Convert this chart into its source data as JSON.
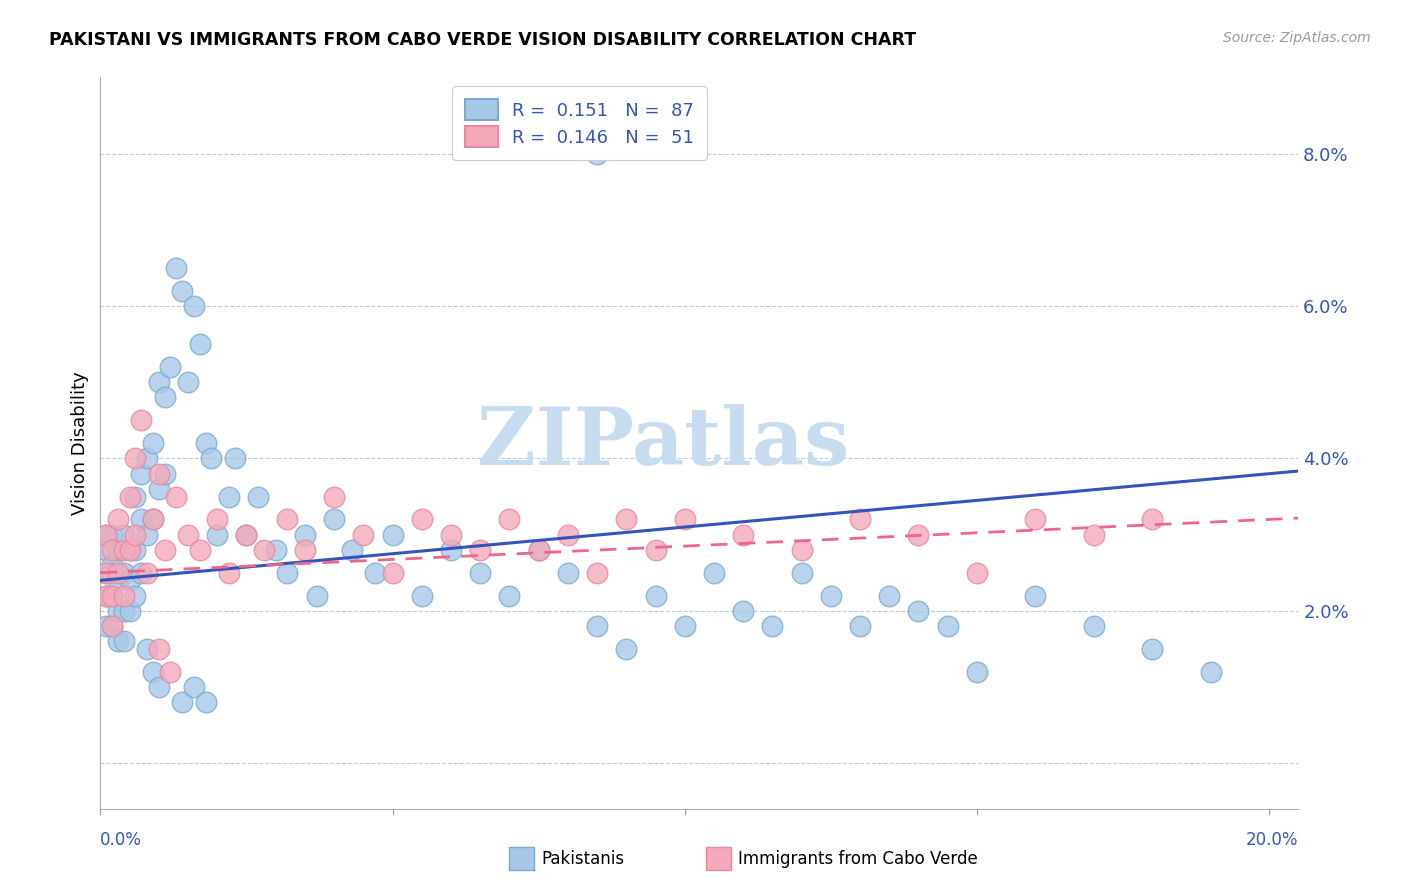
{
  "title": "PAKISTANI VS IMMIGRANTS FROM CABO VERDE VISION DISABILITY CORRELATION CHART",
  "source": "Source: ZipAtlas.com",
  "ylabel": "Vision Disability",
  "blue_color": "#A8C8E8",
  "pink_color": "#F4AABB",
  "line_blue": "#3355BB",
  "line_pink": "#EE6688",
  "watermark_color": "#C8DCF0",
  "pak_n": 87,
  "cv_n": 51,
  "pak_R": 0.151,
  "cv_R": 0.146,
  "xlim": [
    0.0,
    0.205
  ],
  "ylim": [
    -0.006,
    0.09
  ],
  "yticks": [
    0.0,
    0.02,
    0.04,
    0.06,
    0.08
  ],
  "ytick_labels": [
    "",
    "2.0%",
    "4.0%",
    "6.0%",
    "8.0%"
  ],
  "xtick_labels_show": [
    "0.0%",
    "20.0%"
  ],
  "trend_blue_start": 0.024,
  "trend_blue_end": 0.038,
  "trend_pink_start": 0.025,
  "trend_pink_end": 0.032,
  "pak_seed": 12,
  "cv_seed": 7,
  "pak_x": [
    0.001,
    0.001,
    0.001,
    0.001,
    0.001,
    0.002,
    0.002,
    0.002,
    0.002,
    0.002,
    0.003,
    0.003,
    0.003,
    0.003,
    0.004,
    0.004,
    0.004,
    0.004,
    0.005,
    0.005,
    0.005,
    0.006,
    0.006,
    0.006,
    0.007,
    0.007,
    0.007,
    0.008,
    0.008,
    0.009,
    0.009,
    0.01,
    0.01,
    0.011,
    0.011,
    0.012,
    0.013,
    0.014,
    0.015,
    0.016,
    0.017,
    0.018,
    0.019,
    0.02,
    0.022,
    0.023,
    0.025,
    0.027,
    0.03,
    0.032,
    0.035,
    0.037,
    0.04,
    0.043,
    0.047,
    0.05,
    0.055,
    0.06,
    0.065,
    0.07,
    0.075,
    0.08,
    0.085,
    0.09,
    0.095,
    0.1,
    0.105,
    0.11,
    0.115,
    0.12,
    0.125,
    0.13,
    0.135,
    0.14,
    0.145,
    0.15,
    0.16,
    0.17,
    0.18,
    0.19,
    0.085,
    0.008,
    0.009,
    0.01,
    0.014,
    0.016,
    0.018
  ],
  "pak_y": [
    0.025,
    0.028,
    0.022,
    0.03,
    0.018,
    0.026,
    0.03,
    0.022,
    0.025,
    0.018,
    0.028,
    0.024,
    0.02,
    0.016,
    0.03,
    0.025,
    0.02,
    0.016,
    0.028,
    0.024,
    0.02,
    0.035,
    0.028,
    0.022,
    0.038,
    0.032,
    0.025,
    0.04,
    0.03,
    0.042,
    0.032,
    0.05,
    0.036,
    0.048,
    0.038,
    0.052,
    0.065,
    0.062,
    0.05,
    0.06,
    0.055,
    0.042,
    0.04,
    0.03,
    0.035,
    0.04,
    0.03,
    0.035,
    0.028,
    0.025,
    0.03,
    0.022,
    0.032,
    0.028,
    0.025,
    0.03,
    0.022,
    0.028,
    0.025,
    0.022,
    0.028,
    0.025,
    0.018,
    0.015,
    0.022,
    0.018,
    0.025,
    0.02,
    0.018,
    0.025,
    0.022,
    0.018,
    0.022,
    0.02,
    0.018,
    0.012,
    0.022,
    0.018,
    0.015,
    0.012,
    0.08,
    0.015,
    0.012,
    0.01,
    0.008,
    0.01,
    0.008
  ],
  "cv_x": [
    0.001,
    0.001,
    0.001,
    0.002,
    0.002,
    0.002,
    0.003,
    0.003,
    0.004,
    0.004,
    0.005,
    0.005,
    0.006,
    0.006,
    0.007,
    0.008,
    0.009,
    0.01,
    0.011,
    0.013,
    0.015,
    0.017,
    0.02,
    0.022,
    0.025,
    0.028,
    0.032,
    0.035,
    0.04,
    0.045,
    0.05,
    0.055,
    0.06,
    0.065,
    0.07,
    0.075,
    0.08,
    0.085,
    0.09,
    0.095,
    0.1,
    0.11,
    0.12,
    0.13,
    0.14,
    0.15,
    0.16,
    0.17,
    0.18,
    0.01,
    0.012
  ],
  "cv_y": [
    0.03,
    0.025,
    0.022,
    0.028,
    0.022,
    0.018,
    0.032,
    0.025,
    0.028,
    0.022,
    0.035,
    0.028,
    0.04,
    0.03,
    0.045,
    0.025,
    0.032,
    0.038,
    0.028,
    0.035,
    0.03,
    0.028,
    0.032,
    0.025,
    0.03,
    0.028,
    0.032,
    0.028,
    0.035,
    0.03,
    0.025,
    0.032,
    0.03,
    0.028,
    0.032,
    0.028,
    0.03,
    0.025,
    0.032,
    0.028,
    0.032,
    0.03,
    0.028,
    0.032,
    0.03,
    0.025,
    0.032,
    0.03,
    0.032,
    0.015,
    0.012
  ]
}
